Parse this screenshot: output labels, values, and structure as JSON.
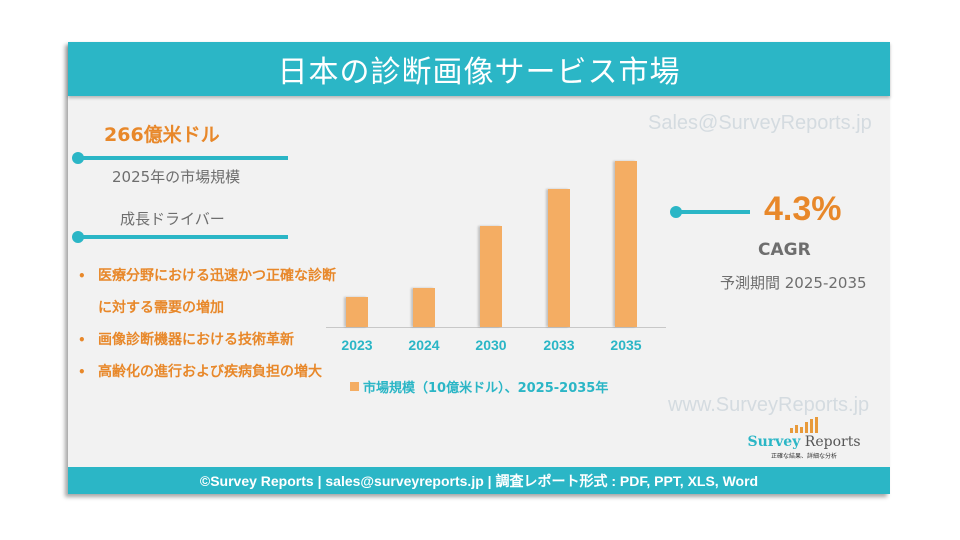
{
  "header": {
    "title": "日本の診断画像サービス市場"
  },
  "watermarks": {
    "email": "Sales@SurveyReports.jp",
    "url": "www.SurveyReports.jp"
  },
  "market_size": {
    "value": "266億米ドル",
    "label": "2025年の市場規模"
  },
  "drivers": {
    "title": "成長ドライバー",
    "items": [
      "医療分野における迅速かつ正確な診断に対する需要の増加",
      "画像診断機器における技術革新",
      "高齢化の進行および疾病負担の増大"
    ]
  },
  "cagr": {
    "value": "4.3%",
    "label": "CAGR",
    "period": "予測期間 2025-2035"
  },
  "legend": {
    "label": "市場規模（10億米ドル）、2025-2035年"
  },
  "logo": {
    "name_a": "Survey",
    "name_b": " Reports",
    "tagline": "正確な結果、詳細な分析"
  },
  "footer": {
    "text": "©Survey Reports | sales@surveyreports.jp |  調査レポート形式 : PDF, PPT, XLS, Word"
  },
  "colors": {
    "teal": "#2bb6c6",
    "orange": "#e8882a",
    "bar": "#f4ad63"
  },
  "chart_data": {
    "type": "bar",
    "title": "",
    "categories": [
      "2023",
      "2024",
      "2030",
      "2033",
      "2035"
    ],
    "series": [
      {
        "name": "市場規模（10億米ドル）、2025-2035年",
        "values": [
          24.4,
          25.5,
          32.9,
          37.3,
          40.6
        ]
      }
    ],
    "xlabel": "",
    "ylabel": "",
    "grid": false,
    "legend_position": "bottom",
    "annotations": [
      "266億米ドル 2025年の市場規模",
      "CAGR 4.3% 予測期間 2025-2035"
    ]
  }
}
